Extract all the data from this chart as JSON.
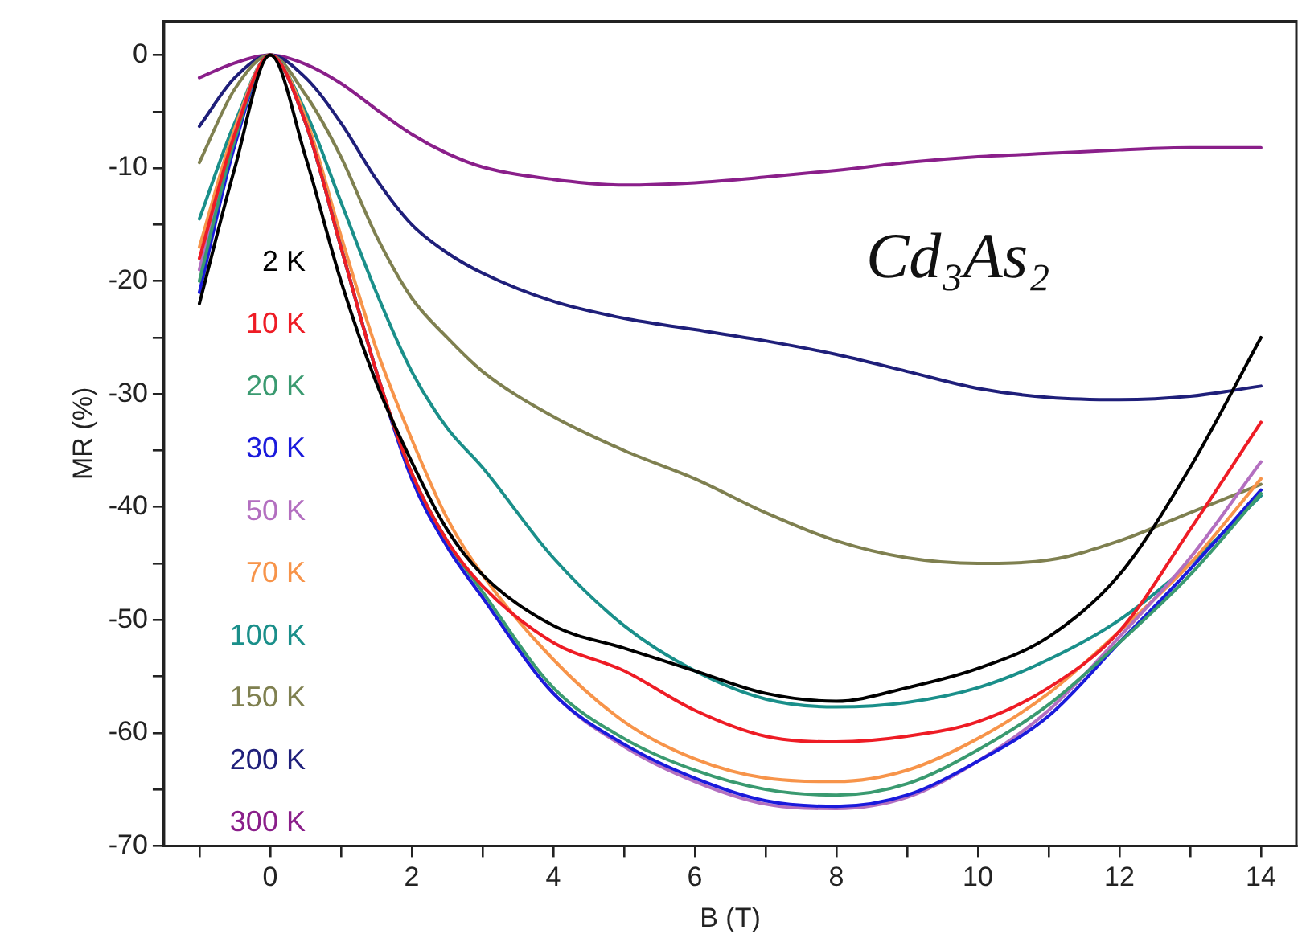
{
  "chart_data": {
    "type": "line",
    "xlabel": "B (T)",
    "ylabel": "MR (%)",
    "annotations": [
      "Cd₃As₂"
    ],
    "x": [
      -1,
      -0.5,
      0,
      0.5,
      1,
      1.5,
      2,
      2.5,
      3,
      4,
      5,
      6,
      7,
      8,
      9,
      10,
      11,
      12,
      13,
      14
    ],
    "xlim": [
      -1.5,
      14.5
    ],
    "xticks": [
      {
        "value": -1,
        "label": null
      },
      0,
      {
        "value": 1,
        "label": null
      },
      2,
      {
        "value": 3,
        "label": null
      },
      4,
      {
        "value": 5,
        "label": null
      },
      6,
      {
        "value": 7,
        "label": null
      },
      8,
      {
        "value": 9,
        "label": null
      },
      10,
      {
        "value": 11,
        "label": null
      },
      12,
      {
        "value": 13,
        "label": null
      },
      14
    ],
    "ylim": [
      -70,
      3
    ],
    "yticks": [
      -70,
      {
        "value": -65,
        "label": null
      },
      -60,
      {
        "value": -55,
        "label": null
      },
      -50,
      {
        "value": -45,
        "label": null
      },
      -40,
      {
        "value": -35,
        "label": null
      },
      -30,
      {
        "value": -25,
        "label": null
      },
      -20,
      {
        "value": -15,
        "label": null
      },
      -10,
      {
        "value": -5,
        "label": null
      },
      0
    ],
    "grid": false,
    "legend": "left",
    "marker": "none",
    "line_style": "solid",
    "series": [
      {
        "name": "2 K",
        "color": "#000000",
        "values": [
          -22,
          -10,
          0,
          -9,
          -20,
          -29,
          -36,
          -42,
          -46,
          -50.5,
          -52.5,
          -54.5,
          -56.5,
          -57.2,
          -56,
          -54.3,
          -51.5,
          -46,
          -36.5,
          -25
        ]
      },
      {
        "name": "10 K",
        "color": "#ee1c25",
        "values": [
          -18,
          -7,
          0,
          -6,
          -17,
          -28,
          -37,
          -43,
          -47,
          -52,
          -54.5,
          -58,
          -60.3,
          -60.8,
          -60.3,
          -59,
          -56,
          -51,
          -42,
          -32.5
        ]
      },
      {
        "name": "20 K",
        "color": "#3a9a70",
        "values": [
          -20,
          -7.5,
          0,
          -6,
          -17,
          -28,
          -37,
          -43,
          -47.5,
          -56,
          -60.5,
          -63.3,
          -65,
          -65.5,
          -64.5,
          -61.5,
          -57.5,
          -52,
          -46,
          -38.8
        ]
      },
      {
        "name": "30 K",
        "color": "#1a1adc",
        "values": [
          -21,
          -8,
          0,
          -6,
          -17,
          -28,
          -37.5,
          -43.5,
          -48,
          -56.5,
          -61,
          -64,
          -66,
          -66.5,
          -65.5,
          -62.5,
          -58.5,
          -52,
          -45.5,
          -38.5
        ]
      },
      {
        "name": "50 K",
        "color": "#b36fc0",
        "values": [
          -19,
          -7,
          0,
          -6,
          -17,
          -28,
          -37.5,
          -43.5,
          -48,
          -56.5,
          -61.2,
          -64.3,
          -66.3,
          -66.7,
          -65.7,
          -62.5,
          -58,
          -51.5,
          -44.5,
          -36
        ]
      },
      {
        "name": "70 K",
        "color": "#f7944a",
        "values": [
          -17,
          -6.5,
          0,
          -5.5,
          -16,
          -26,
          -34,
          -41,
          -46,
          -53.5,
          -59,
          -62.3,
          -64,
          -64.3,
          -63.3,
          -60.5,
          -56.5,
          -51,
          -45,
          -37.5
        ]
      },
      {
        "name": "100 K",
        "color": "#1a8f8a",
        "values": [
          -14.5,
          -6,
          0,
          -5,
          -13,
          -21,
          -28,
          -33,
          -36.5,
          -44.5,
          -50.5,
          -54.5,
          -57,
          -57.7,
          -57.3,
          -56,
          -53.5,
          -50,
          -45,
          -39
        ]
      },
      {
        "name": "150 K",
        "color": "#7f8050",
        "values": [
          -9.5,
          -3,
          0,
          -3.5,
          -9,
          -16,
          -21.5,
          -25,
          -28,
          -32,
          -35,
          -37.5,
          -40.5,
          -43,
          -44.5,
          -45,
          -44.7,
          -43,
          -40.5,
          -38
        ]
      },
      {
        "name": "200 K",
        "color": "#1f1f7a",
        "values": [
          -6.3,
          -2,
          0,
          -2,
          -6,
          -11,
          -15,
          -17.5,
          -19.3,
          -21.8,
          -23.3,
          -24.3,
          -25.3,
          -26.5,
          -28,
          -29.5,
          -30.3,
          -30.5,
          -30.2,
          -29.3
        ]
      },
      {
        "name": "300 K",
        "color": "#8a1f8a",
        "values": [
          -2,
          -0.7,
          0,
          -0.8,
          -2.5,
          -4.8,
          -7,
          -8.7,
          -9.9,
          -11,
          -11.5,
          -11.3,
          -10.8,
          -10.2,
          -9.5,
          -9,
          -8.7,
          -8.4,
          -8.2,
          -8.2
        ]
      }
    ]
  }
}
